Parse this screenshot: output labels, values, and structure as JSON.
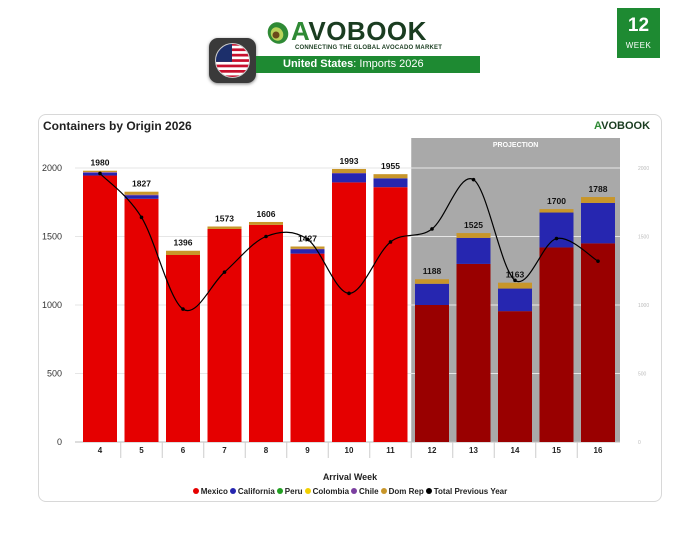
{
  "header": {
    "week_number": "12",
    "week_label": "WEEK",
    "logo_a": "A",
    "logo_rest": "VOBOOK",
    "logo_tagline": "CONNECTING THE GLOBAL AVOCADO MARKET",
    "country": "United States",
    "country_suffix": ": Imports 2026",
    "flag_icon": "us-flag-icon"
  },
  "colors": {
    "Mexico": "#e50000",
    "Mexico_projection": "#990000",
    "California": "#2626b0",
    "Peru": "#22a022",
    "Colombia": "#f2d000",
    "Chile": "#7b3fa0",
    "Dom Rep": "#c8962a",
    "Total Previous Year": "#000000",
    "projection_bg": "#a9a9a9",
    "brand_green": "#1e8a32"
  },
  "chart_data": {
    "type": "bar",
    "title": "Containers by Origin 2026",
    "xlabel": "Arrival Week",
    "ylabel": "",
    "ylim": [
      0,
      2000
    ],
    "yticks": [
      0,
      500,
      1000,
      1500,
      2000
    ],
    "projection_label": "PROJECTION",
    "projection_from": "12",
    "categories": [
      "4",
      "5",
      "6",
      "7",
      "8",
      "9",
      "10",
      "11",
      "12",
      "13",
      "14",
      "15",
      "16"
    ],
    "totals": [
      1980,
      1827,
      1396,
      1573,
      1606,
      1427,
      1993,
      1955,
      1188,
      1525,
      1163,
      1700,
      1788
    ],
    "series": [
      {
        "name": "Mexico",
        "values": [
          1945,
          1775,
          1365,
          1555,
          1585,
          1375,
          1895,
          1860,
          1000,
          1300,
          955,
          1420,
          1450
        ]
      },
      {
        "name": "California",
        "values": [
          20,
          25,
          0,
          0,
          0,
          30,
          65,
          65,
          155,
          190,
          165,
          255,
          295
        ]
      },
      {
        "name": "Peru",
        "values": [
          0,
          0,
          0,
          0,
          0,
          0,
          0,
          0,
          0,
          0,
          0,
          0,
          0
        ]
      },
      {
        "name": "Colombia",
        "values": [
          0,
          0,
          0,
          0,
          0,
          0,
          0,
          0,
          0,
          0,
          0,
          0,
          0
        ]
      },
      {
        "name": "Chile",
        "values": [
          5,
          5,
          0,
          0,
          0,
          5,
          3,
          0,
          0,
          0,
          0,
          0,
          0
        ]
      },
      {
        "name": "Dom Rep",
        "values": [
          10,
          22,
          31,
          18,
          21,
          17,
          30,
          30,
          33,
          35,
          43,
          25,
          43
        ]
      },
      {
        "name": "Total Previous Year",
        "type": "line",
        "values": [
          1960,
          1640,
          970,
          1240,
          1500,
          1480,
          1085,
          1460,
          1555,
          1915,
          1180,
          1485,
          1320
        ]
      }
    ],
    "legend": [
      "Mexico",
      "California",
      "Peru",
      "Colombia",
      "Chile",
      "Dom Rep",
      "Total Previous Year"
    ],
    "legend_position": "bottom"
  }
}
